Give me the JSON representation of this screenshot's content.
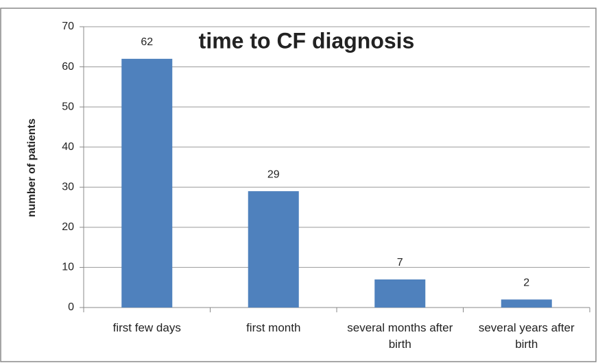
{
  "chart_data": {
    "type": "bar",
    "title": "time to CF diagnosis",
    "y_label": "number of patients",
    "categories": [
      "first few days",
      "first month",
      "several months after birth",
      "several years after birth"
    ],
    "values": [
      62,
      29,
      7,
      2
    ],
    "color": "#4f81bd",
    "ylim": [
      0,
      70
    ],
    "yticks": [
      0,
      10,
      20,
      30,
      40,
      50,
      60,
      70
    ],
    "grid": true
  }
}
